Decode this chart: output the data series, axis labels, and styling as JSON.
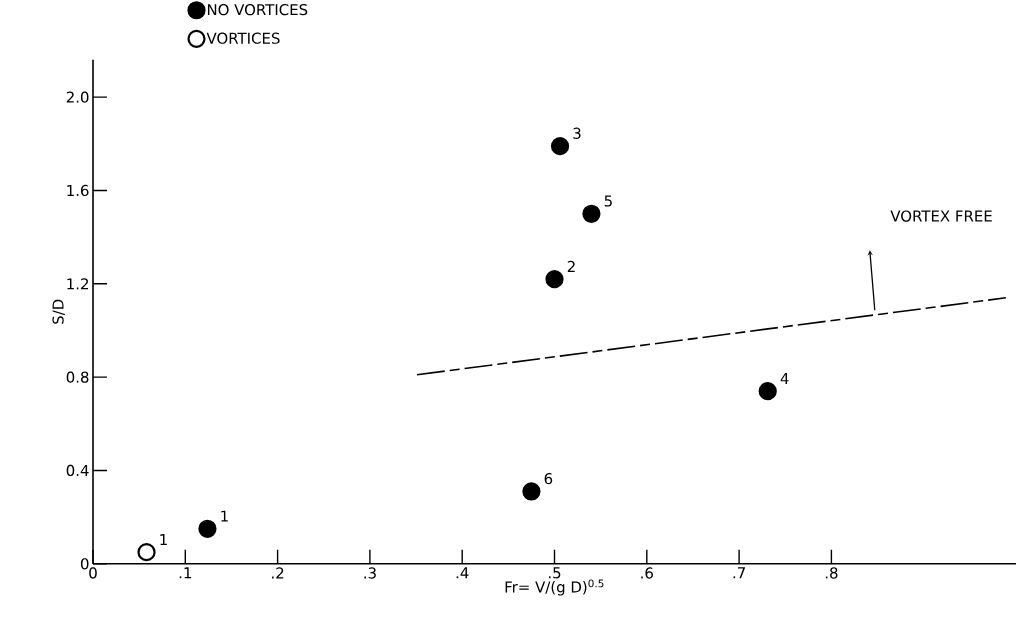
{
  "chart_data": {
    "type": "scatter",
    "xlabel": "Fr= V/(g D)$^{0.5}$",
    "ylabel": "S/D",
    "series": [
      {
        "name": "NO VORTICES",
        "color": "#000000",
        "marker": "circle",
        "x": [
          0.124,
          0.5,
          0.506,
          0.731,
          0.54,
          0.475
        ],
        "values": [
          0.15,
          1.22,
          1.79,
          0.74,
          1.5,
          0.31
        ]
      },
      {
        "name": "VORTICES",
        "color": "#000000",
        "marker": "circle-open",
        "x": [
          0.058
        ],
        "values": [
          0.05
        ]
      },
      {
        "type": "line",
        "color": "#000000",
        "line_style": "dashed",
        "marker": "none",
        "x": [
          0.351,
          0.989
        ],
        "values": [
          0.81,
          1.14
        ]
      }
    ],
    "xlim": [
      0,
      1.0
    ],
    "ylim": [
      0,
      2.16
    ],
    "xticks": [
      0,
      {
        "value": 0.1,
        "label": ".1"
      },
      {
        "value": 0.2,
        "label": ".2"
      },
      {
        "value": 0.3,
        "label": ".3"
      },
      {
        "value": 0.4,
        "label": ".4"
      },
      {
        "value": 0.5,
        "label": ".5"
      },
      {
        "value": 0.6,
        "label": ".6"
      },
      {
        "value": 0.7,
        "label": ".7"
      },
      {
        "value": 0.8,
        "label": ".8"
      }
    ],
    "yticks": [
      0,
      0.4,
      0.8,
      1.2,
      1.6,
      {
        "value": 2.0,
        "label": "2.0"
      }
    ],
    "legend": "top left",
    "grid": false,
    "annotations": [
      {
        "text": "1",
        "x": 0.058,
        "y": 0.05
      },
      {
        "text": "1",
        "x": 0.124,
        "y": 0.15
      },
      {
        "text": "2",
        "x": 0.5,
        "y": 1.22
      },
      {
        "text": "3",
        "x": 0.506,
        "y": 1.79
      },
      {
        "text": "4",
        "x": 0.731,
        "y": 0.74
      },
      {
        "text": "5",
        "x": 0.54,
        "y": 1.5
      },
      {
        "text": "6",
        "x": 0.475,
        "y": 0.31
      },
      "VORTEX FREE"
    ]
  }
}
